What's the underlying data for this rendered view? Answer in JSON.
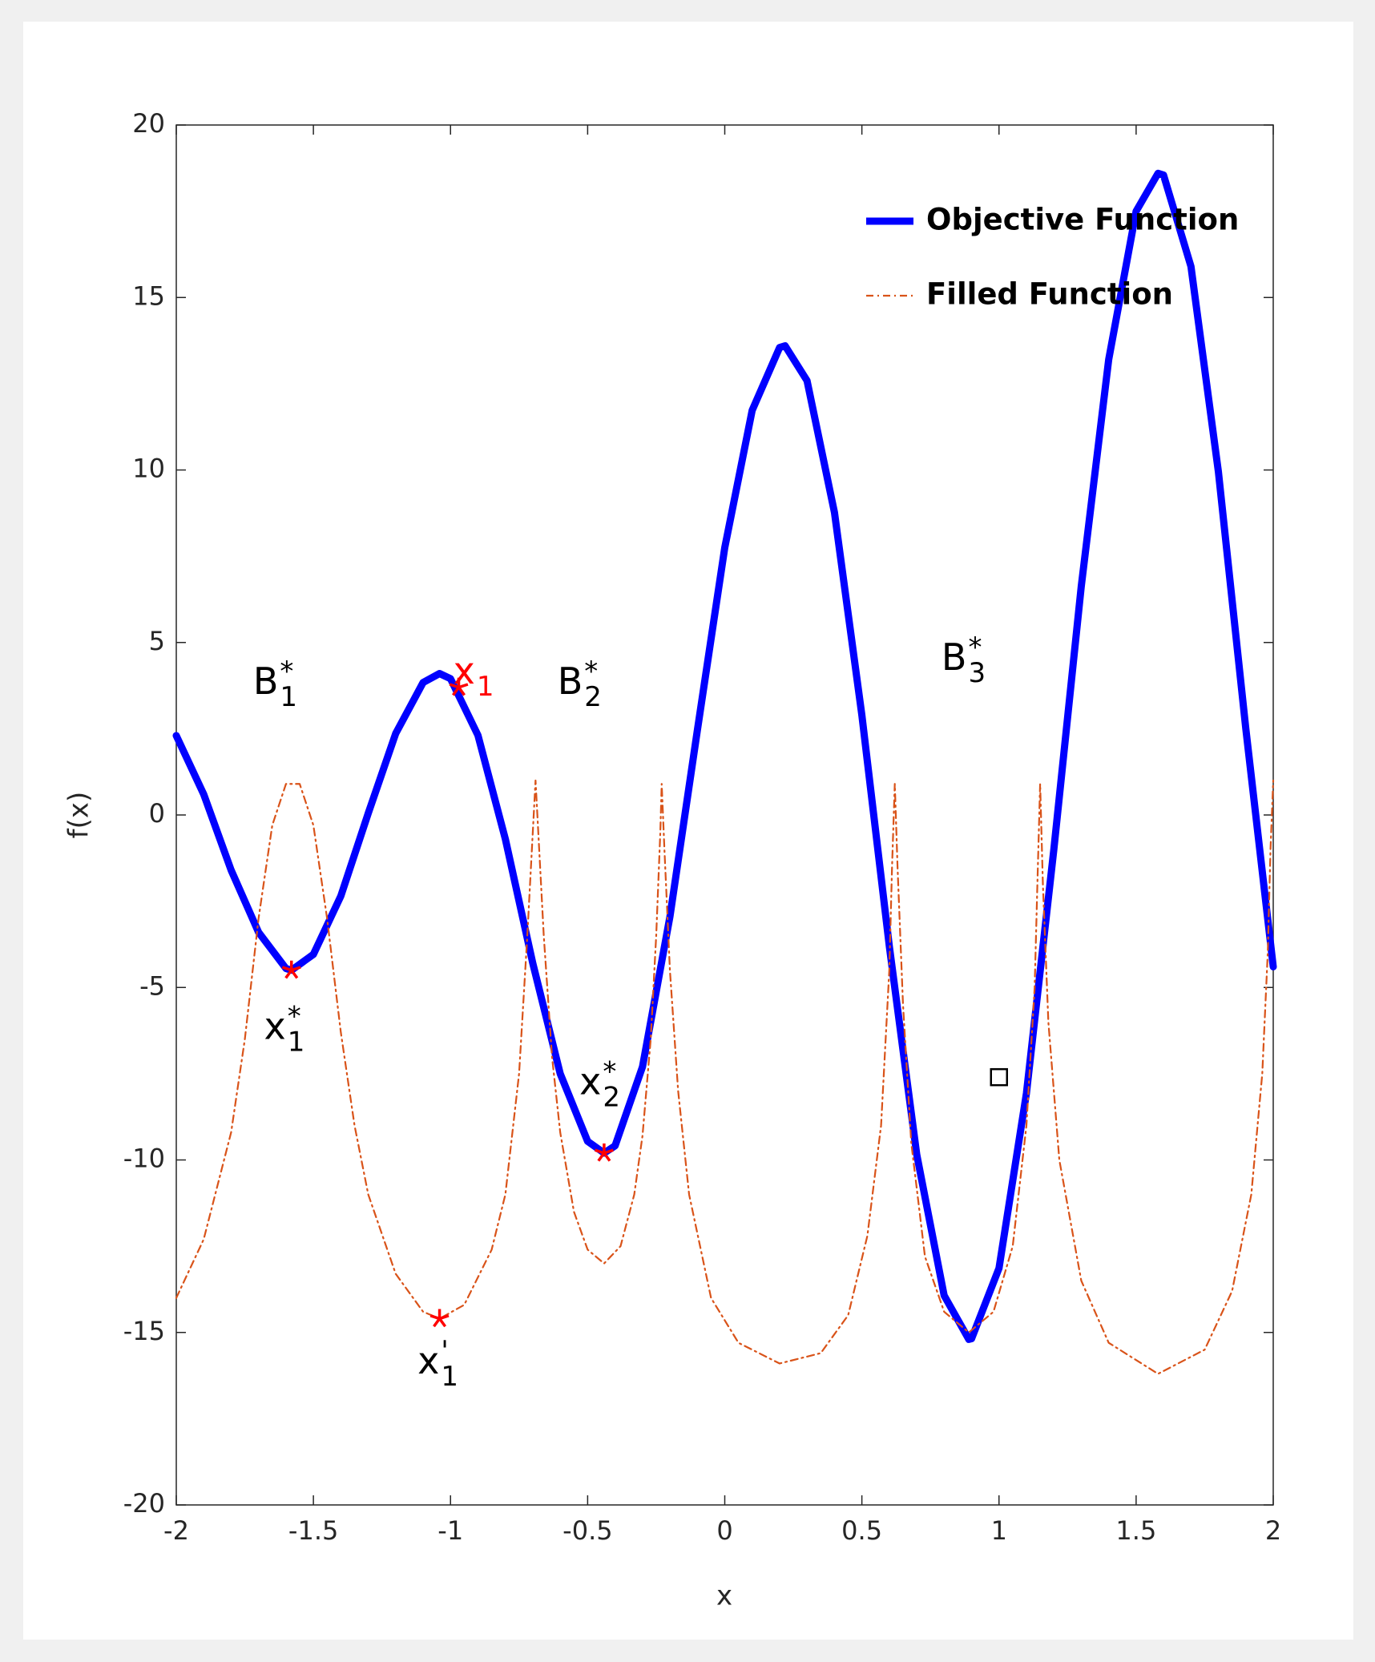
{
  "chart_data": {
    "type": "line",
    "xlabel": "x",
    "ylabel": "f(x)",
    "xlim": [
      -2,
      2
    ],
    "ylim": [
      -20,
      20
    ],
    "xticks": [
      -2,
      -1.5,
      -1,
      -0.5,
      0,
      0.5,
      1,
      1.5,
      2
    ],
    "yticks": [
      -20,
      -15,
      -10,
      -5,
      0,
      5,
      10,
      15,
      20
    ],
    "legend": "upper right",
    "series": [
      {
        "name": "Objective Function",
        "color": "#0000ff",
        "style": "solid",
        "x": [
          -2,
          -1.9,
          -1.8,
          -1.7,
          -1.6,
          -1.58,
          -1.5,
          -1.4,
          -1.3,
          -1.2,
          -1.1,
          -1.04,
          -1,
          -0.9,
          -0.8,
          -0.7,
          -0.6,
          -0.5,
          -0.44,
          -0.4,
          -0.3,
          -0.2,
          -0.1,
          0,
          0.1,
          0.2,
          0.22,
          0.3,
          0.4,
          0.5,
          0.6,
          0.7,
          0.8,
          0.89,
          0.9,
          1,
          1.1,
          1.2,
          1.3,
          1.4,
          1.5,
          1.58,
          1.6,
          1.7,
          1.8,
          1.9,
          2
        ],
        "values": [
          2.3,
          0.6,
          -1.6,
          -3.4,
          -4.45,
          -4.5,
          -4.04,
          -2.35,
          0.05,
          2.36,
          3.84,
          4.1,
          3.95,
          2.31,
          -0.7,
          -4.3,
          -7.5,
          -9.46,
          -9.8,
          -9.59,
          -7.3,
          -2.95,
          2.45,
          7.75,
          11.73,
          13.55,
          13.6,
          12.59,
          8.77,
          2.89,
          -3.8,
          -9.84,
          -13.93,
          -15.2,
          -15.18,
          -13.14,
          -8.07,
          -1.0,
          6.63,
          13.2,
          17.5,
          18.6,
          18.55,
          15.9,
          9.95,
          2.5,
          -4.4
        ]
      },
      {
        "name": "Filled Function",
        "color": "#d95319",
        "style": "dashdot",
        "x": [
          -2,
          -1.9,
          -1.8,
          -1.75,
          -1.7,
          -1.65,
          -1.6,
          -1.55,
          -1.5,
          -1.45,
          -1.4,
          -1.35,
          -1.3,
          -1.2,
          -1.1,
          -1.04,
          -0.95,
          -0.85,
          -0.8,
          -0.75,
          -0.72,
          -0.7,
          -0.69,
          -0.68,
          -0.66,
          -0.63,
          -0.6,
          -0.55,
          -0.5,
          -0.44,
          -0.38,
          -0.33,
          -0.3,
          -0.27,
          -0.25,
          -0.235,
          -0.23,
          -0.22,
          -0.2,
          -0.17,
          -0.13,
          -0.05,
          0.05,
          0.2,
          0.35,
          0.45,
          0.52,
          0.57,
          0.6,
          0.61,
          0.62,
          0.63,
          0.65,
          0.68,
          0.73,
          0.8,
          0.89,
          0.98,
          1.05,
          1.1,
          1.13,
          1.14,
          1.15,
          1.16,
          1.18,
          1.22,
          1.3,
          1.4,
          1.58,
          1.75,
          1.85,
          1.92,
          1.96,
          1.98,
          1.99,
          2
        ],
        "values": [
          -14,
          -12.3,
          -9.2,
          -6.5,
          -3,
          -0.3,
          0.9,
          0.9,
          -0.3,
          -3,
          -6.3,
          -9,
          -11,
          -13.3,
          -14.4,
          -14.6,
          -14.2,
          -12.6,
          -11,
          -7.5,
          -3.5,
          -0.5,
          1,
          -0.5,
          -3.5,
          -7,
          -9.2,
          -11.5,
          -12.6,
          -13,
          -12.5,
          -11,
          -9.3,
          -6.5,
          -3.5,
          -0.5,
          0.9,
          -1,
          -4.5,
          -8,
          -11,
          -14,
          -15.3,
          -15.9,
          -15.6,
          -14.5,
          -12.2,
          -9,
          -4.5,
          -1.5,
          0.9,
          -1.5,
          -5.5,
          -9.5,
          -12.8,
          -14.4,
          -15,
          -14.4,
          -12.5,
          -9,
          -5,
          -2,
          0.9,
          -2,
          -6,
          -10,
          -13.5,
          -15.3,
          -16.2,
          -15.5,
          -13.8,
          -11,
          -7.5,
          -4,
          -1,
          1
        ]
      }
    ],
    "markers": {
      "color": "#ff0000",
      "x": [
        -1.58,
        -0.97,
        -0.44,
        -1.04
      ],
      "values": [
        -4.5,
        3.7,
        -9.8,
        -14.6
      ]
    },
    "square": {
      "color": "#000000",
      "x": 1.0,
      "value": -7.6
    },
    "annotations": [
      {
        "base": "B",
        "sup": "*",
        "sub": "1",
        "x": -1.72,
        "y": 3.8,
        "color": "#000000"
      },
      {
        "base": "x",
        "sub": "1",
        "x": -0.99,
        "y": 4.1,
        "color": "#ff0000"
      },
      {
        "base": "B",
        "sup": "*",
        "sub": "2",
        "x": -0.61,
        "y": 3.8,
        "color": "#000000"
      },
      {
        "base": "B",
        "sup": "*",
        "sub": "3",
        "x": 0.79,
        "y": 4.5,
        "color": "#000000"
      },
      {
        "base": "x",
        "sup": "*",
        "sub": "1",
        "x": -1.68,
        "y": -6.2,
        "color": "#000000"
      },
      {
        "base": "x",
        "sup": "*",
        "sub": "2",
        "x": -0.53,
        "y": -7.8,
        "color": "#000000"
      },
      {
        "base": "x",
        "sup": "'",
        "sub": "1",
        "x": -1.12,
        "y": -15.9,
        "color": "#000000"
      }
    ]
  }
}
